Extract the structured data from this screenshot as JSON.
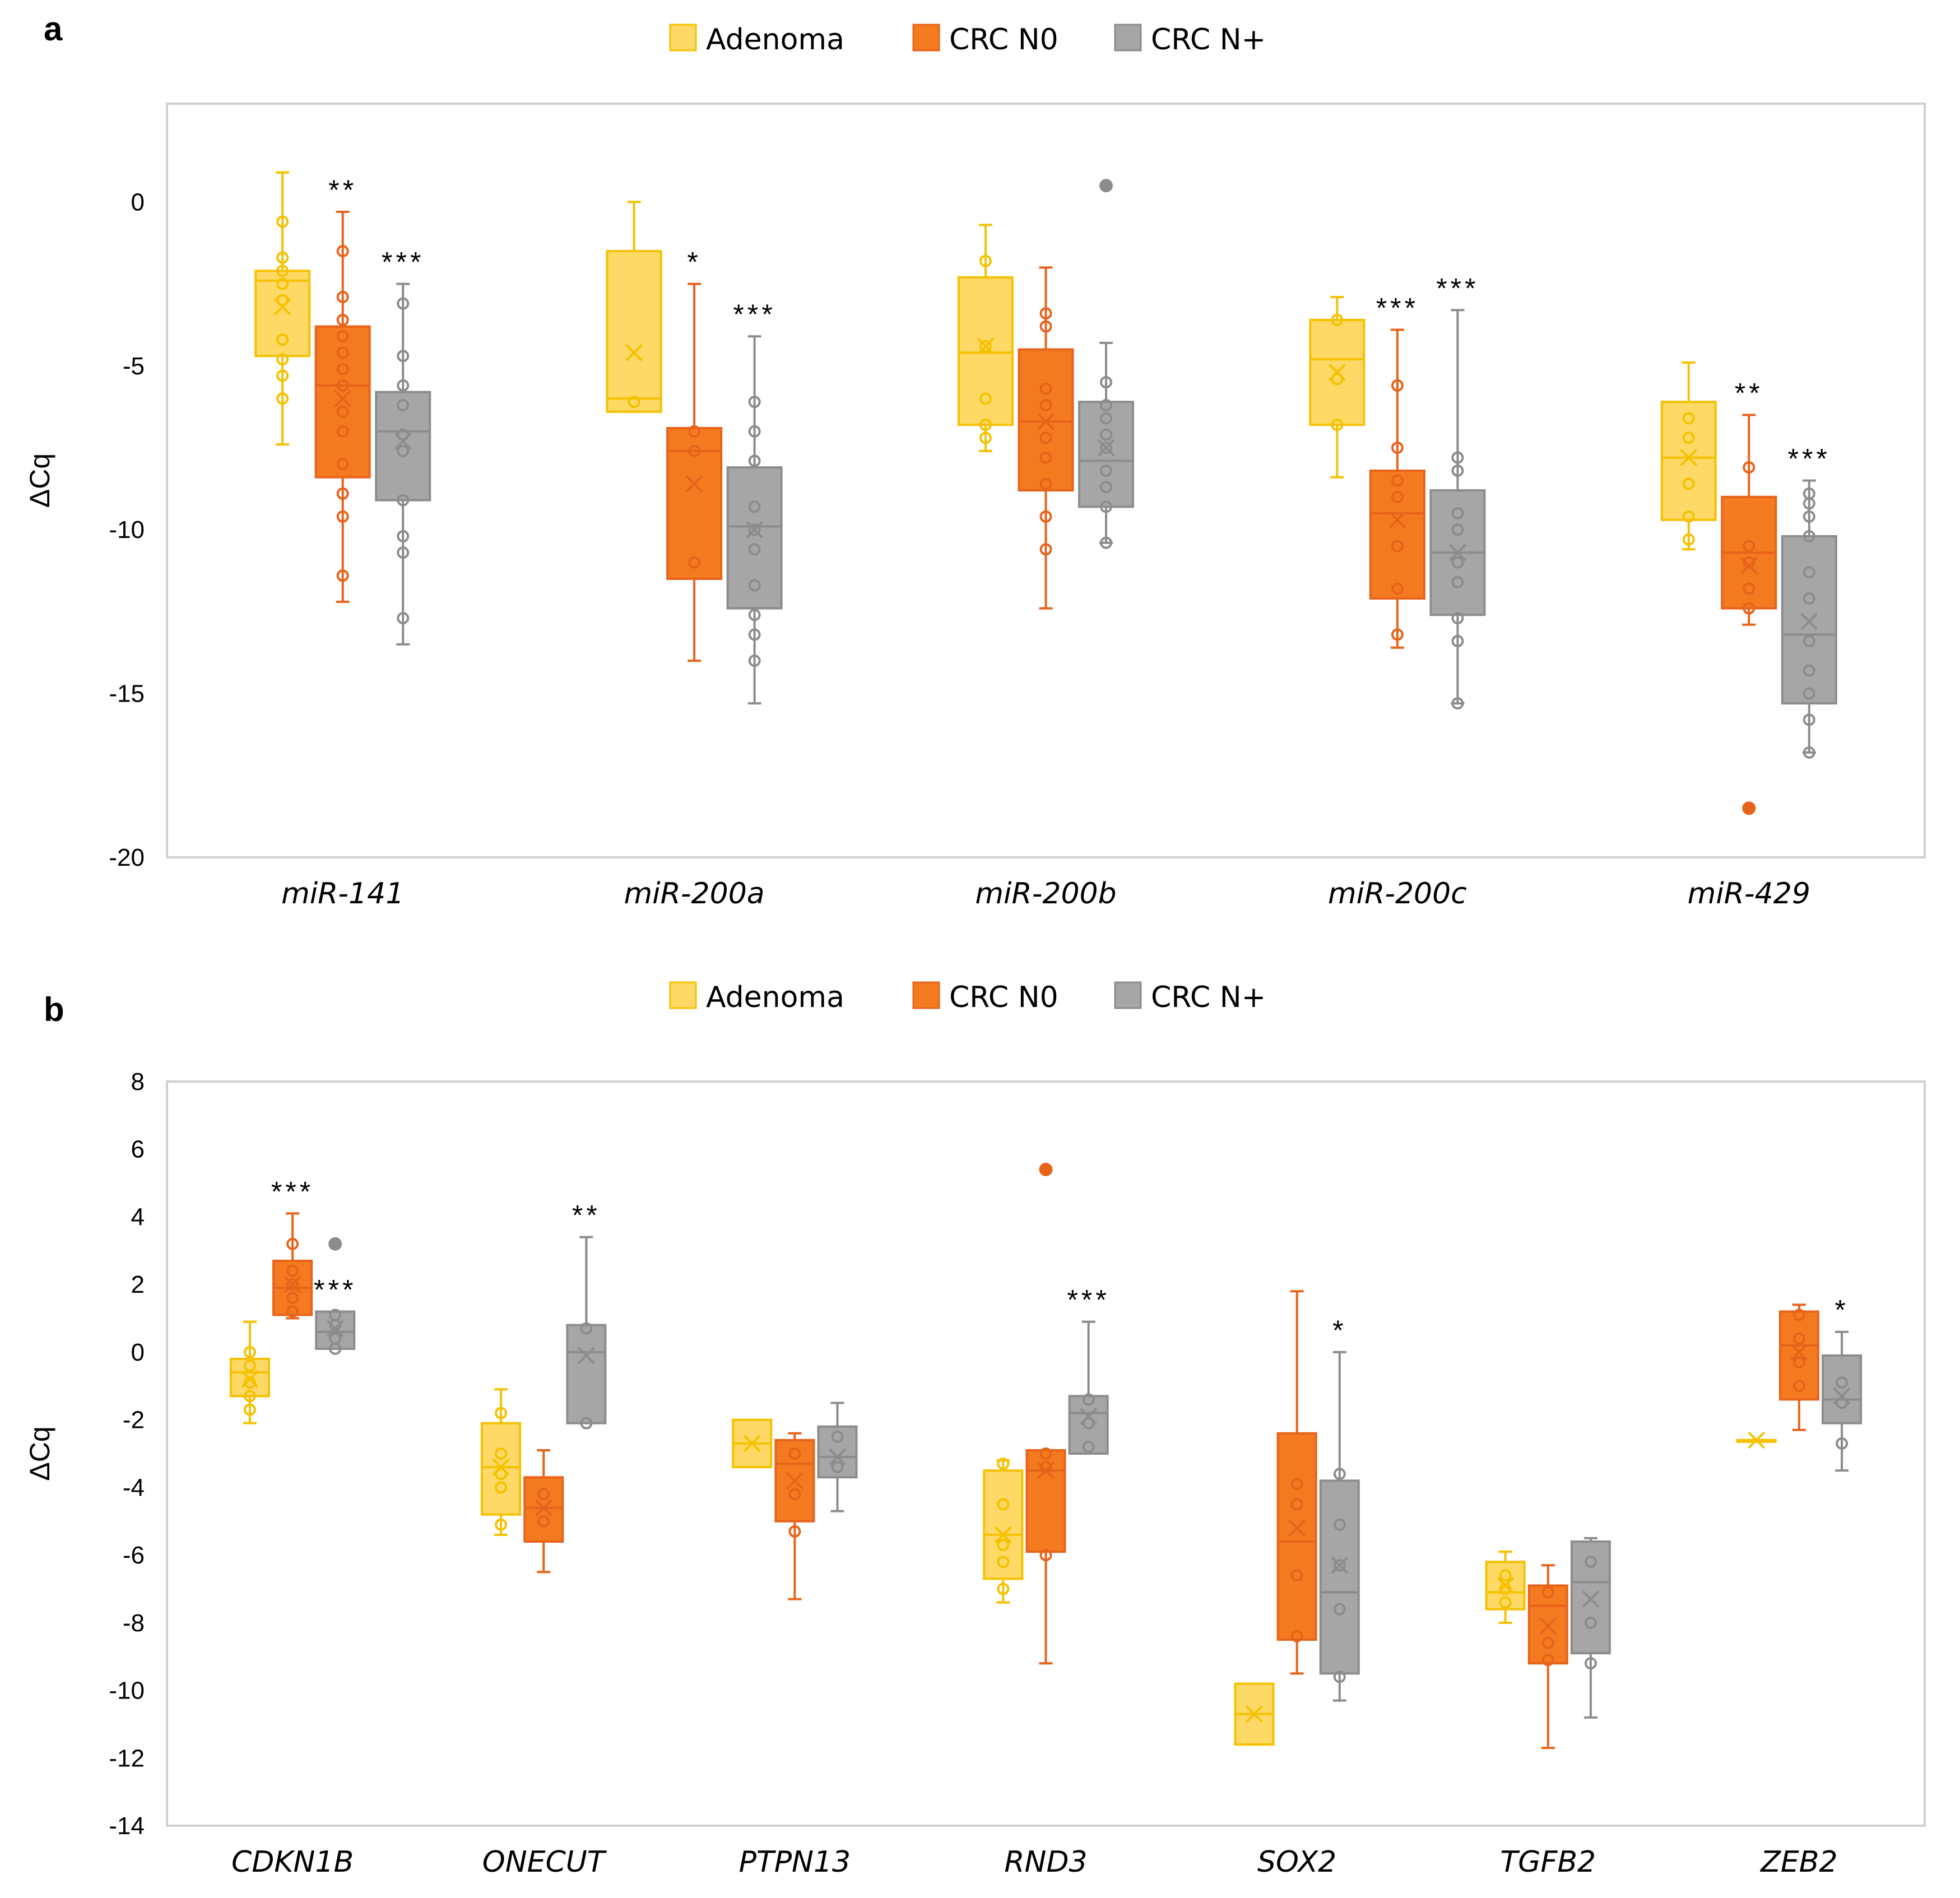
{
  "colors": {
    "Adenoma": {
      "fill": "#FFD966",
      "stroke": "#F5C100",
      "point": "#F5C100"
    },
    "CRC N0": {
      "fill": "#F47A20",
      "stroke": "#E8631A",
      "point": "#E8631A"
    },
    "CRC N+": {
      "fill": "#A6A6A6",
      "stroke": "#8C8C8C",
      "point": "#8C8C8C"
    }
  },
  "chart_data": [
    {
      "panel": "a",
      "type": "boxplot",
      "ylabel": "ΔCq",
      "ylim": [
        -20,
        3
      ],
      "yticks": [
        0,
        -5,
        -10,
        -15,
        -20
      ],
      "legend": [
        "Adenoma",
        "CRC N0",
        "CRC N+"
      ],
      "legend_position": "top-center",
      "categories": [
        "miR-141",
        "miR-200a",
        "miR-200b",
        "miR-200c",
        "miR-429"
      ],
      "series": [
        {
          "name": "Adenoma",
          "boxes": [
            {
              "min": -7.4,
              "q1": -4.7,
              "median": -2.4,
              "q3": -2.1,
              "max": 0.9,
              "mean": -3.2,
              "points": [
                -0.6,
                -1.7,
                -2.1,
                -2.5,
                -3.0,
                -4.2,
                -4.8,
                -5.3,
                -6.0
              ],
              "outliers": []
            },
            {
              "min": -6.4,
              "q1": -6.4,
              "median": -6.0,
              "q3": -1.5,
              "max": 0.0,
              "mean": -4.6,
              "points": [
                -6.1
              ],
              "outliers": []
            },
            {
              "min": -7.6,
              "q1": -6.8,
              "median": -4.6,
              "q3": -2.3,
              "max": -0.7,
              "mean": -4.4,
              "points": [
                -1.8,
                -4.4,
                -6.0,
                -6.8,
                -7.2
              ],
              "outliers": []
            },
            {
              "min": -8.4,
              "q1": -6.8,
              "median": -4.8,
              "q3": -3.6,
              "max": -2.9,
              "mean": -5.2,
              "points": [
                -3.6,
                -5.4,
                -6.8
              ],
              "outliers": []
            },
            {
              "min": -10.6,
              "q1": -9.7,
              "median": -7.8,
              "q3": -6.1,
              "max": -4.9,
              "mean": -7.8,
              "points": [
                -6.6,
                -7.2,
                -8.6,
                -9.6,
                -10.3
              ],
              "outliers": []
            }
          ]
        },
        {
          "name": "CRC N0",
          "boxes": [
            {
              "min": -12.2,
              "q1": -8.4,
              "median": -5.6,
              "q3": -3.8,
              "max": -0.3,
              "mean": -6.0,
              "points": [
                -1.5,
                -2.9,
                -3.6,
                -4.1,
                -4.6,
                -5.1,
                -5.6,
                -6.4,
                -7.0,
                -8.0,
                -8.9,
                -9.6,
                -11.4
              ],
              "outliers": []
            },
            {
              "min": -14.0,
              "q1": -11.5,
              "median": -7.6,
              "q3": -6.9,
              "max": -2.5,
              "mean": -8.6,
              "points": [
                -7.0,
                -7.6,
                -11.0
              ],
              "outliers": []
            },
            {
              "min": -12.4,
              "q1": -8.8,
              "median": -6.7,
              "q3": -4.5,
              "max": -2.0,
              "mean": -6.7,
              "points": [
                -3.4,
                -3.8,
                -5.7,
                -6.2,
                -7.2,
                -7.8,
                -8.6,
                -9.6,
                -10.6
              ],
              "outliers": []
            },
            {
              "min": -13.6,
              "q1": -12.1,
              "median": -9.5,
              "q3": -8.2,
              "max": -3.9,
              "mean": -9.7,
              "points": [
                -5.6,
                -7.5,
                -8.5,
                -9.0,
                -10.5,
                -11.8,
                -13.2
              ],
              "outliers": []
            },
            {
              "min": -12.9,
              "q1": -12.4,
              "median": -10.7,
              "q3": -9.0,
              "max": -6.5,
              "mean": -11.1,
              "points": [
                -8.1,
                -10.5,
                -11.0,
                -11.8,
                -12.4
              ],
              "outliers": [
                -18.5
              ]
            }
          ]
        },
        {
          "name": "CRC N+",
          "boxes": [
            {
              "min": -13.5,
              "q1": -9.1,
              "median": -7.0,
              "q3": -5.8,
              "max": -2.5,
              "mean": -7.3,
              "points": [
                -3.1,
                -4.7,
                -5.6,
                -6.2,
                -7.1,
                -7.6,
                -9.1,
                -10.2,
                -10.7,
                -12.7
              ],
              "outliers": []
            },
            {
              "min": -15.3,
              "q1": -12.4,
              "median": -9.9,
              "q3": -8.1,
              "max": -4.1,
              "mean": -10.0,
              "points": [
                -6.1,
                -7.0,
                -7.9,
                -9.3,
                -10.0,
                -10.6,
                -11.7,
                -12.6,
                -13.2,
                -14.0
              ],
              "outliers": []
            },
            {
              "min": -10.4,
              "q1": -9.3,
              "median": -7.9,
              "q3": -6.1,
              "max": -4.3,
              "mean": -7.5,
              "points": [
                -5.5,
                -6.2,
                -6.6,
                -7.1,
                -7.5,
                -8.2,
                -8.7,
                -9.3,
                -10.4
              ],
              "outliers": [
                0.5
              ]
            },
            {
              "min": -15.3,
              "q1": -12.6,
              "median": -10.7,
              "q3": -8.8,
              "max": -3.3,
              "mean": -10.7,
              "points": [
                -7.8,
                -8.2,
                -9.5,
                -10.0,
                -11.0,
                -11.6,
                -12.7,
                -13.4,
                -15.3
              ],
              "outliers": []
            },
            {
              "min": -16.8,
              "q1": -15.3,
              "median": -13.2,
              "q3": -10.2,
              "max": -8.5,
              "mean": -12.8,
              "points": [
                -8.9,
                -9.2,
                -9.6,
                -10.2,
                -11.3,
                -12.1,
                -13.4,
                -14.3,
                -15.0,
                -15.8,
                -16.8
              ],
              "outliers": []
            }
          ]
        }
      ],
      "significance": [
        {
          "category": "miR-141",
          "series": "CRC N0",
          "label": "**"
        },
        {
          "category": "miR-141",
          "series": "CRC N+",
          "label": "***"
        },
        {
          "category": "miR-200a",
          "series": "CRC N0",
          "label": "*"
        },
        {
          "category": "miR-200a",
          "series": "CRC N+",
          "label": "***"
        },
        {
          "category": "miR-200c",
          "series": "CRC N0",
          "label": "***"
        },
        {
          "category": "miR-200c",
          "series": "CRC N+",
          "label": "***"
        },
        {
          "category": "miR-429",
          "series": "CRC N0",
          "label": "**"
        },
        {
          "category": "miR-429",
          "series": "CRC N+",
          "label": "***"
        }
      ]
    },
    {
      "panel": "b",
      "type": "boxplot",
      "ylabel": "ΔCq",
      "ylim": [
        -14,
        8
      ],
      "yticks": [
        8,
        6,
        4,
        2,
        0,
        -2,
        -4,
        -6,
        -8,
        -10,
        -12,
        -14
      ],
      "legend": [
        "Adenoma",
        "CRC N0",
        "CRC N+"
      ],
      "legend_position": "top-center",
      "categories": [
        "CDKN1B",
        "ONECUT",
        "PTPN13",
        "RND3",
        "SOX2",
        "TGFB2",
        "ZEB2"
      ],
      "series": [
        {
          "name": "Adenoma",
          "boxes": [
            {
              "min": -2.1,
              "q1": -1.3,
              "median": -0.6,
              "q3": -0.2,
              "max": 0.9,
              "mean": -0.8,
              "points": [
                0.0,
                -0.4,
                -0.9,
                -1.3,
                -1.7
              ],
              "outliers": []
            },
            {
              "min": -5.4,
              "q1": -4.8,
              "median": -3.4,
              "q3": -2.1,
              "max": -1.1,
              "mean": -3.4,
              "points": [
                -1.8,
                -3.0,
                -3.6,
                -4.0,
                -5.1
              ],
              "outliers": []
            },
            {
              "min": -3.4,
              "q1": -3.4,
              "median": -2.7,
              "q3": -2.0,
              "max": -2.0,
              "mean": -2.7,
              "points": [],
              "outliers": []
            },
            {
              "min": -7.4,
              "q1": -6.7,
              "median": -5.4,
              "q3": -3.5,
              "max": -3.2,
              "mean": -5.4,
              "points": [
                -3.3,
                -4.5,
                -5.7,
                -6.2,
                -7.0
              ],
              "outliers": []
            },
            {
              "min": -11.6,
              "q1": -11.6,
              "median": -10.7,
              "q3": -9.8,
              "max": -9.8,
              "mean": -10.7,
              "points": [],
              "outliers": []
            },
            {
              "min": -8.0,
              "q1": -7.6,
              "median": -7.1,
              "q3": -6.2,
              "max": -5.9,
              "mean": -6.9,
              "points": [
                -6.6,
                -7.0,
                -7.4
              ],
              "outliers": []
            },
            {
              "min": -2.6,
              "q1": -2.6,
              "median": -2.6,
              "q3": -2.6,
              "max": -2.6,
              "mean": -2.6,
              "points": [],
              "outliers": []
            }
          ]
        },
        {
          "name": "CRC N0",
          "boxes": [
            {
              "min": 1.0,
              "q1": 1.1,
              "median": 1.9,
              "q3": 2.7,
              "max": 4.1,
              "mean": 2.0,
              "points": [
                3.2,
                2.4,
                2.0,
                1.6,
                1.2
              ],
              "outliers": []
            },
            {
              "min": -6.5,
              "q1": -5.6,
              "median": -4.6,
              "q3": -3.7,
              "max": -2.9,
              "mean": -4.6,
              "points": [
                -4.2,
                -5.0
              ],
              "outliers": []
            },
            {
              "min": -7.3,
              "q1": -5.0,
              "median": -3.3,
              "q3": -2.6,
              "max": -2.4,
              "mean": -3.8,
              "points": [
                -3.0,
                -4.2,
                -5.3
              ],
              "outliers": []
            },
            {
              "min": -9.2,
              "q1": -5.9,
              "median": -3.5,
              "q3": -2.9,
              "max": -2.9,
              "mean": -3.5,
              "points": [
                -3.0,
                -3.4,
                -6.0
              ],
              "outliers": [
                5.4
              ]
            },
            {
              "min": -9.5,
              "q1": -8.5,
              "median": -5.6,
              "q3": -2.4,
              "max": 1.8,
              "mean": -5.2,
              "points": [
                -3.9,
                -4.5,
                -6.6,
                -8.4
              ],
              "outliers": []
            },
            {
              "min": -11.7,
              "q1": -9.2,
              "median": -7.5,
              "q3": -6.9,
              "max": -6.3,
              "mean": -8.1,
              "points": [
                -7.1,
                -8.6,
                -9.1
              ],
              "outliers": []
            },
            {
              "min": -2.3,
              "q1": -1.4,
              "median": 0.2,
              "q3": 1.2,
              "max": 1.4,
              "mean": 0.0,
              "points": [
                1.1,
                0.4,
                -0.3,
                -1.0
              ],
              "outliers": []
            }
          ]
        },
        {
          "name": "CRC N+",
          "boxes": [
            {
              "min": 0.1,
              "q1": 0.1,
              "median": 0.6,
              "q3": 1.2,
              "max": 1.2,
              "mean": 0.7,
              "points": [
                1.1,
                0.8,
                0.4,
                0.1
              ],
              "outliers": [
                3.2
              ]
            },
            {
              "min": -2.1,
              "q1": -2.1,
              "median": 0.0,
              "q3": 0.8,
              "max": 3.4,
              "mean": -0.1,
              "points": [
                0.7,
                -2.1
              ],
              "outliers": []
            },
            {
              "min": -4.7,
              "q1": -3.7,
              "median": -3.1,
              "q3": -2.2,
              "max": -1.5,
              "mean": -3.1,
              "points": [
                -2.5,
                -3.4
              ],
              "outliers": []
            },
            {
              "min": -3.0,
              "q1": -3.0,
              "median": -1.8,
              "q3": -1.3,
              "max": 0.9,
              "mean": -1.9,
              "points": [
                -1.4,
                -2.1,
                -2.8
              ],
              "outliers": []
            },
            {
              "min": -10.3,
              "q1": -9.5,
              "median": -7.1,
              "q3": -3.8,
              "max": 0.0,
              "mean": -6.3,
              "points": [
                -3.6,
                -5.1,
                -6.3,
                -7.6,
                -9.6
              ],
              "outliers": []
            },
            {
              "min": -10.8,
              "q1": -8.9,
              "median": -6.8,
              "q3": -5.6,
              "max": -5.5,
              "mean": -7.3,
              "points": [
                -6.2,
                -8.0,
                -9.2
              ],
              "outliers": []
            },
            {
              "min": -3.5,
              "q1": -2.1,
              "median": -1.4,
              "q3": -0.1,
              "max": 0.6,
              "mean": -1.3,
              "points": [
                -0.9,
                -1.5,
                -2.7
              ],
              "outliers": []
            }
          ]
        }
      ],
      "significance": [
        {
          "category": "CDKN1B",
          "series": "CRC N0",
          "label": "***"
        },
        {
          "category": "CDKN1B",
          "series": "CRC N+",
          "label": "***"
        },
        {
          "category": "ONECUT",
          "series": "CRC N+",
          "label": "**"
        },
        {
          "category": "RND3",
          "series": "CRC N+",
          "label": "***"
        },
        {
          "category": "SOX2",
          "series": "CRC N+",
          "label": "*"
        },
        {
          "category": "ZEB2",
          "series": "CRC N+",
          "label": "*"
        }
      ]
    }
  ]
}
